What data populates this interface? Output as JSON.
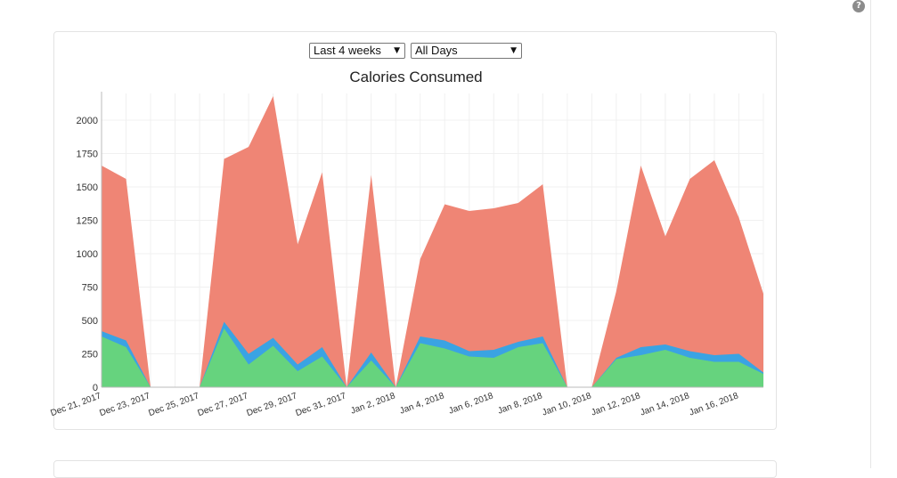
{
  "help_icon_label": "?",
  "filters": {
    "range_value": "Last 4 weeks",
    "days_value": "All Days"
  },
  "chart_data": {
    "type": "area",
    "title": "Calories Consumed",
    "stacked": false,
    "ylim": [
      0,
      2200
    ],
    "yticks": [
      0,
      250,
      500,
      750,
      1000,
      1250,
      1500,
      1750,
      2000
    ],
    "grid": true,
    "x": [
      "2017-12-21",
      "2017-12-22",
      "2017-12-23",
      "2017-12-24",
      "2017-12-25",
      "2017-12-26",
      "2017-12-27",
      "2017-12-28",
      "2017-12-29",
      "2017-12-30",
      "2017-12-31",
      "2018-01-01",
      "2018-01-02",
      "2018-01-03",
      "2018-01-04",
      "2018-01-05",
      "2018-01-06",
      "2018-01-07",
      "2018-01-08",
      "2018-01-09",
      "2018-01-10",
      "2018-01-11",
      "2018-01-12",
      "2018-01-13",
      "2018-01-14",
      "2018-01-15",
      "2018-01-16",
      "2018-01-17"
    ],
    "x_tick_labels": [
      "Dec 21, 2017",
      "Dec 23, 2017",
      "Dec 25, 2017",
      "Dec 27, 2017",
      "Dec 29, 2017",
      "Dec 31, 2017",
      "Jan 2, 2018",
      "Jan 4, 2018",
      "Jan 6, 2018",
      "Jan 8, 2018",
      "Jan 10, 2018",
      "Jan 12, 2018",
      "Jan 14, 2018",
      "Jan 16, 2018"
    ],
    "series": [
      {
        "color": "#ef8575",
        "values": [
          1660,
          1560,
          0,
          0,
          0,
          1710,
          1800,
          2180,
          1070,
          1610,
          0,
          1590,
          0,
          960,
          1370,
          1320,
          1340,
          1380,
          1520,
          0,
          0,
          720,
          1660,
          1130,
          1560,
          1700,
          1270,
          700
        ]
      },
      {
        "color": "#3aa3e3",
        "values": [
          420,
          350,
          0,
          0,
          0,
          490,
          250,
          370,
          170,
          300,
          0,
          260,
          0,
          380,
          350,
          270,
          280,
          340,
          380,
          0,
          0,
          220,
          300,
          320,
          270,
          240,
          250,
          110
        ]
      },
      {
        "color": "#66d37e",
        "values": [
          380,
          300,
          0,
          0,
          0,
          440,
          170,
          310,
          120,
          230,
          0,
          200,
          0,
          330,
          290,
          230,
          220,
          300,
          330,
          0,
          0,
          210,
          240,
          280,
          220,
          190,
          190,
          100
        ]
      }
    ]
  }
}
